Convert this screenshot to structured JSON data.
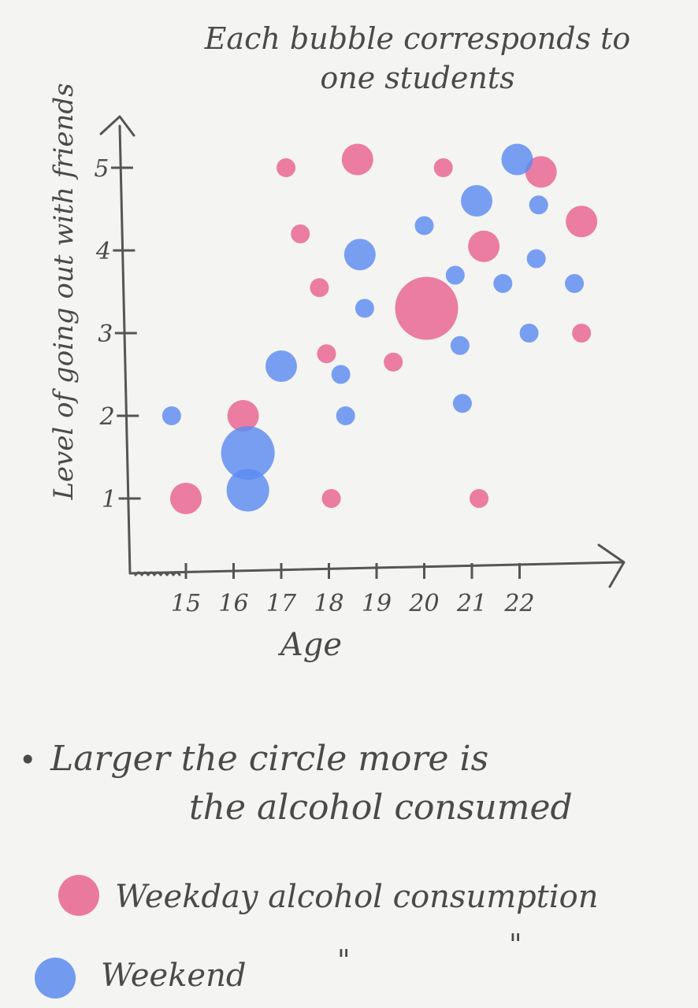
{
  "title_line1": "Each bubble corresponds to",
  "title_line2": "one students",
  "note_bullet": "•",
  "note_line1": "Larger the circle more is",
  "note_line2": "the alcohol consumed",
  "legend": {
    "weekday_label": "Weekday alcohol consumption",
    "weekend_label": "Weekend",
    "weekend_ditto1": "\"",
    "weekend_ditto2": "\"",
    "weekday_color": "#e8638f",
    "weekend_color": "#5b8bf0"
  },
  "chart_data": {
    "type": "scatter",
    "title": "Each bubble corresponds to one students",
    "xlabel": "Age",
    "ylabel": "Level of going out with friends",
    "x_ticks": [
      "15",
      "16",
      "17",
      "18",
      "19",
      "20",
      "21",
      "22"
    ],
    "y_ticks": [
      "1",
      "2",
      "3",
      "4",
      "5"
    ],
    "xlim": [
      14,
      23.5
    ],
    "ylim": [
      0,
      5.5
    ],
    "size_meaning": "Larger the circle more is the alcohol consumed",
    "series": [
      {
        "name": "Weekday alcohol consumption",
        "color": "#e8638f",
        "points": [
          {
            "x": 15,
            "y": 1.0,
            "size": 2
          },
          {
            "x": 16.2,
            "y": 2.0,
            "size": 2
          },
          {
            "x": 17.1,
            "y": 5.0,
            "size": 1
          },
          {
            "x": 17.4,
            "y": 4.2,
            "size": 1
          },
          {
            "x": 17.8,
            "y": 3.55,
            "size": 1
          },
          {
            "x": 17.95,
            "y": 2.75,
            "size": 1
          },
          {
            "x": 18.05,
            "y": 1.0,
            "size": 1
          },
          {
            "x": 18.6,
            "y": 5.1,
            "size": 2
          },
          {
            "x": 19.35,
            "y": 2.65,
            "size": 1
          },
          {
            "x": 20.05,
            "y": 3.3,
            "size": 5
          },
          {
            "x": 20.4,
            "y": 5.0,
            "size": 1
          },
          {
            "x": 21.15,
            "y": 1.0,
            "size": 1
          },
          {
            "x": 21.25,
            "y": 4.05,
            "size": 2
          },
          {
            "x": 22.45,
            "y": 4.95,
            "size": 2
          },
          {
            "x": 23.3,
            "y": 4.35,
            "size": 2
          },
          {
            "x": 23.3,
            "y": 3.0,
            "size": 1
          }
        ]
      },
      {
        "name": "Weekend",
        "color": "#5b8bf0",
        "points": [
          {
            "x": 14.7,
            "y": 2.0,
            "size": 1
          },
          {
            "x": 16.3,
            "y": 1.55,
            "size": 4
          },
          {
            "x": 16.3,
            "y": 1.1,
            "size": 3
          },
          {
            "x": 17.0,
            "y": 2.6,
            "size": 2
          },
          {
            "x": 18.25,
            "y": 2.5,
            "size": 1
          },
          {
            "x": 18.35,
            "y": 2.0,
            "size": 1
          },
          {
            "x": 18.65,
            "y": 3.95,
            "size": 2
          },
          {
            "x": 18.75,
            "y": 3.3,
            "size": 1
          },
          {
            "x": 20.0,
            "y": 4.3,
            "size": 1
          },
          {
            "x": 20.65,
            "y": 3.7,
            "size": 1
          },
          {
            "x": 20.75,
            "y": 2.85,
            "size": 1
          },
          {
            "x": 20.8,
            "y": 2.15,
            "size": 1
          },
          {
            "x": 21.1,
            "y": 4.6,
            "size": 2
          },
          {
            "x": 21.65,
            "y": 3.6,
            "size": 1
          },
          {
            "x": 21.95,
            "y": 5.1,
            "size": 2
          },
          {
            "x": 22.2,
            "y": 3.0,
            "size": 1
          },
          {
            "x": 22.35,
            "y": 3.9,
            "size": 1
          },
          {
            "x": 22.4,
            "y": 4.55,
            "size": 1
          },
          {
            "x": 23.15,
            "y": 3.6,
            "size": 1
          }
        ]
      }
    ]
  }
}
